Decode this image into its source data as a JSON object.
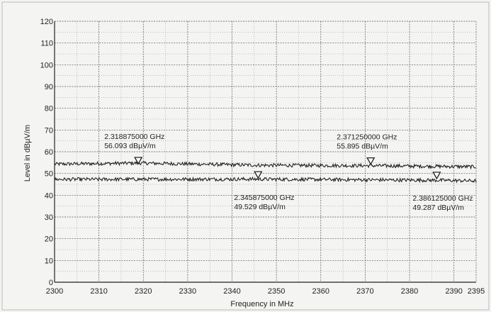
{
  "chart_data": {
    "type": "line",
    "xlabel": "Frequency in MHz",
    "ylabel": "Level in dBµV/m",
    "xlim": [
      2300,
      2395
    ],
    "ylim": [
      0,
      120
    ],
    "x_ticks": [
      2300,
      2310,
      2320,
      2330,
      2340,
      2350,
      2360,
      2370,
      2380,
      2390,
      2395
    ],
    "y_ticks": [
      0,
      10,
      20,
      30,
      40,
      50,
      60,
      70,
      80,
      90,
      100,
      110,
      120
    ],
    "grid": true,
    "series": [
      {
        "x": [
          2300,
          2318.875,
          2345.875,
          2371.25,
          2395
        ],
        "values": [
          54.3,
          54.8,
          53.8,
          53.6,
          53.1
        ]
      },
      {
        "x": [
          2300,
          2345.875,
          2386.125,
          2395
        ],
        "values": [
          47.3,
          47.4,
          46.9,
          46.6
        ]
      }
    ],
    "markers": [
      {
        "x": 2318.875,
        "y": 56.093,
        "line1": "2.318875000 GHz",
        "line2": "56.093 dBµV/m"
      },
      {
        "x": 2345.875,
        "y": 49.529,
        "line1": "2.345875000 GHz",
        "line2": "49.529 dBµV/m"
      },
      {
        "x": 2371.25,
        "y": 55.895,
        "line1": "2.371250000 GHz",
        "line2": "55.895 dBµV/m"
      },
      {
        "x": 2386.125,
        "y": 49.287,
        "line1": "2.386125000 GHz",
        "line2": "49.287 dBµV/m"
      }
    ]
  }
}
